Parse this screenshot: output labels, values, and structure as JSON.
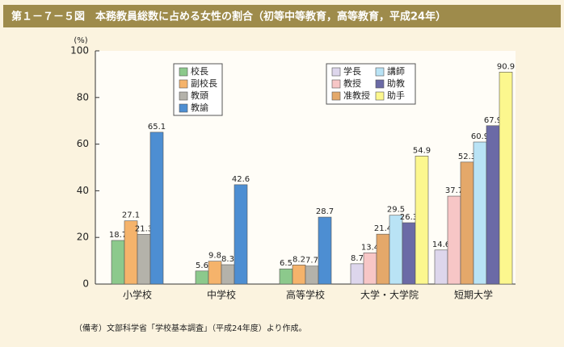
{
  "chart_data": {
    "type": "bar",
    "title": "第１－７－５図　本務教員総数に占める女性の割合（初等中等教育，高等教育，平成24年）",
    "y_label": "(%)",
    "note": "（備考）文部科学省「学校基本調査」（平成24年度）より作成。",
    "categories": [
      "小学校",
      "中学校",
      "高等学校",
      "大学・大学院",
      "短期大学"
    ],
    "series": [
      {
        "name": "校長",
        "color": "#8cc98c",
        "values": [
          18.7,
          5.6,
          6.5,
          null,
          null
        ]
      },
      {
        "name": "副校長",
        "color": "#f5b36b",
        "values": [
          27.1,
          9.8,
          8.2,
          null,
          null
        ]
      },
      {
        "name": "教頭",
        "color": "#b4b2aa",
        "values": [
          21.3,
          8.3,
          7.7,
          null,
          null
        ]
      },
      {
        "name": "教諭",
        "color": "#4d8ed2",
        "values": [
          65.1,
          42.6,
          28.7,
          null,
          null
        ]
      },
      {
        "name": "学長",
        "color": "#ddd6ec",
        "values": [
          null,
          null,
          null,
          8.7,
          14.6
        ]
      },
      {
        "name": "教授",
        "color": "#f7c6c6",
        "values": [
          null,
          null,
          null,
          13.4,
          37.7
        ]
      },
      {
        "name": "准教授",
        "color": "#e4a86a",
        "values": [
          null,
          null,
          null,
          21.4,
          52.3
        ]
      },
      {
        "name": "講師",
        "color": "#b9e3f5",
        "values": [
          null,
          null,
          null,
          29.5,
          60.9
        ]
      },
      {
        "name": "助教",
        "color": "#6b6aa6",
        "values": [
          null,
          null,
          null,
          26.3,
          67.9
        ]
      },
      {
        "name": "助手",
        "color": "#fcf78e",
        "values": [
          null,
          null,
          null,
          54.9,
          90.9
        ]
      }
    ],
    "ylim": [
      0,
      100
    ],
    "yticks": [
      0,
      20,
      40,
      60,
      80,
      100
    ]
  }
}
